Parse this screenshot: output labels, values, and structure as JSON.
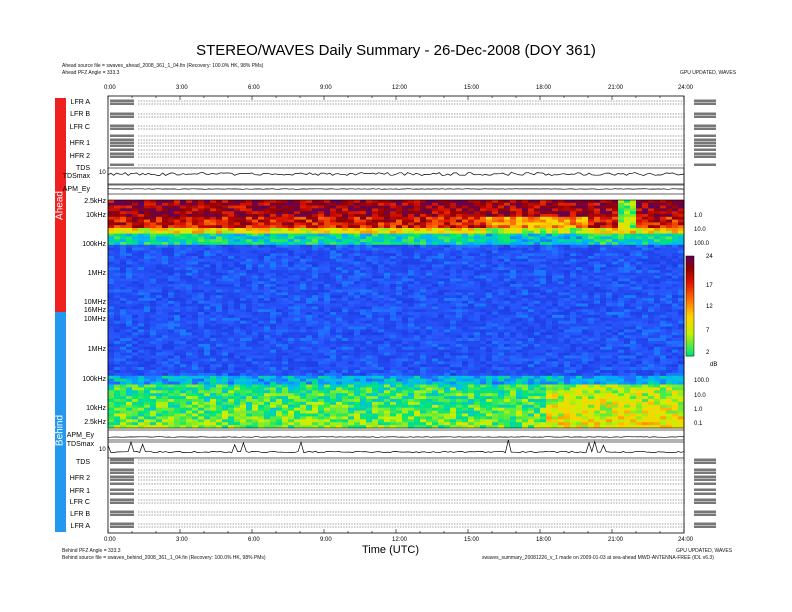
{
  "header": {
    "title": "STEREO/WAVES Daily Summary - 26-Dec-2008 (DOY 361)",
    "ahead_source": "Ahead source file = swaves_ahead_2008_361_1_04.fin (Recovery: 100.0% HK, 98% PMs)",
    "ahead_pfz": "Ahead PFZ Angle = 333.3",
    "top_right": "GPU UPDATED, WAVES"
  },
  "footer": {
    "behind_pfz": "Behind PFZ Angle = 333.3",
    "behind_source": "Behind source file = swaves_behind_2008_361_1_04.fin (Recovery: 100.0% HK, 98% PMs)",
    "right_line1": "GPU UPDATED, WAVES",
    "right_line2": "swaves_summary_20081226_v_1 made on 2009-01-03 at sea-ahead MWD-ANTENNA-FREE (IDL v6.3)"
  },
  "sidebars": {
    "ahead": {
      "label": "Ahead",
      "color": "#ee2020"
    },
    "behind": {
      "label": "Behind",
      "color": "#2299ee"
    }
  },
  "time_ticks": [
    "0:00",
    "3:00",
    "6:00",
    "9:00",
    "12:00",
    "15:00",
    "18:00",
    "21:00",
    "24:00"
  ],
  "xaxis_title": "Time (UTC)",
  "ahead_rows": [
    "LFR A",
    "LFR B",
    "LFR C",
    "HFR 1",
    "HFR 2",
    "TDS",
    "TDSmax",
    "APM_Ey"
  ],
  "behind_rows": [
    "APM_Ey",
    "TDSmax",
    "TDS",
    "HFR 2",
    "HFR 1",
    "LFR C",
    "LFR B",
    "LFR A"
  ],
  "ahead_freq_labels": [
    "2.5kHz",
    "10kHz",
    "100kHz",
    "1MHz",
    "10MHz",
    "16MHz"
  ],
  "behind_freq_labels": [
    "10MHz",
    "1MHz",
    "100kHz",
    "10kHz",
    "2.5kHz"
  ],
  "side_scale_ahead": [
    "1.0",
    "10.0",
    "100.0"
  ],
  "side_scale_behind": [
    "100.0",
    "10.0",
    "1.0",
    "0.1"
  ],
  "small_axis": {
    "top": "10",
    "bottom": "10"
  },
  "colorbar": {
    "ticks": [
      "24",
      "17",
      "12",
      "7",
      "2"
    ],
    "unit": "dB",
    "colors": [
      "#00cc44",
      "#00ee00",
      "#ffff00",
      "#ffaa00",
      "#ff3300",
      "#cc0000",
      "#880000",
      "#660044"
    ]
  },
  "chart_data": {
    "type": "heatmap",
    "title": "STEREO/WAVES Daily Summary - 26-Dec-2008 (DOY 361)",
    "xlabel": "Time (UTC)",
    "x_range": [
      "0:00",
      "24:00"
    ],
    "colorbar_range_dB": [
      2,
      24
    ],
    "panels": [
      {
        "name": "Ahead",
        "freq_range": [
          "2.5kHz",
          "16MHz"
        ]
      },
      {
        "name": "Behind",
        "freq_range": [
          "2.5kHz",
          "16MHz"
        ]
      }
    ]
  }
}
